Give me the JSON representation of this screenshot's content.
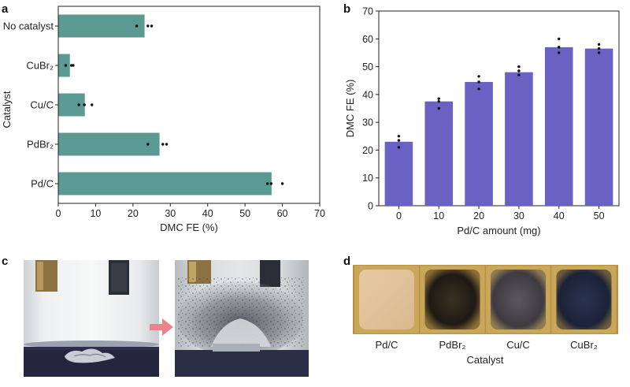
{
  "panels": [
    {
      "letter": "a"
    },
    {
      "letter": "b"
    },
    {
      "letter": "c"
    },
    {
      "letter": "d"
    }
  ],
  "chart_data": [
    {
      "type": "bar",
      "orientation": "horizontal",
      "title": "",
      "xlabel": "DMC FE (%)",
      "ylabel": "Catalyst",
      "categories": [
        "No catalyst",
        "CuBr₂",
        "Cu/C",
        "PdBr₂",
        "Pd/C"
      ],
      "values": [
        23,
        3,
        7,
        27,
        57
      ],
      "points": [
        [
          21,
          24,
          25
        ],
        [
          2,
          3.5,
          4
        ],
        [
          5.5,
          7,
          9
        ],
        [
          24,
          28,
          29
        ],
        [
          56,
          57,
          60
        ]
      ],
      "xlim": [
        0,
        70
      ],
      "xticks": [
        0,
        10,
        20,
        30,
        40,
        50,
        60,
        70
      ],
      "bar_color": "#5a9a92",
      "grid": false
    },
    {
      "type": "bar",
      "title": "",
      "xlabel": "Pd/C amount (mg)",
      "ylabel": "DMC FE (%)",
      "categories": [
        "0",
        "10",
        "20",
        "30",
        "40",
        "50"
      ],
      "values": [
        23,
        37.5,
        44.5,
        48,
        57,
        56.5
      ],
      "points": [
        [
          21,
          23.5,
          25
        ],
        [
          35,
          37.5,
          38.5
        ],
        [
          42,
          44.5,
          46.5
        ],
        [
          47,
          48.5,
          50
        ],
        [
          55,
          57,
          60
        ],
        [
          55,
          56.5,
          58
        ]
      ],
      "ylim": [
        0,
        70
      ],
      "yticks": [
        0,
        10,
        20,
        30,
        40,
        50,
        60,
        70
      ],
      "bar_color": "#6a62c2",
      "grid": false
    }
  ],
  "photo_c": {
    "arrow_color": "#e8848a"
  },
  "photo_d": {
    "labels": [
      "Pd/C",
      "PdBr₂",
      "Cu/C",
      "CuBr₂"
    ],
    "xlabel": "Catalyst"
  }
}
